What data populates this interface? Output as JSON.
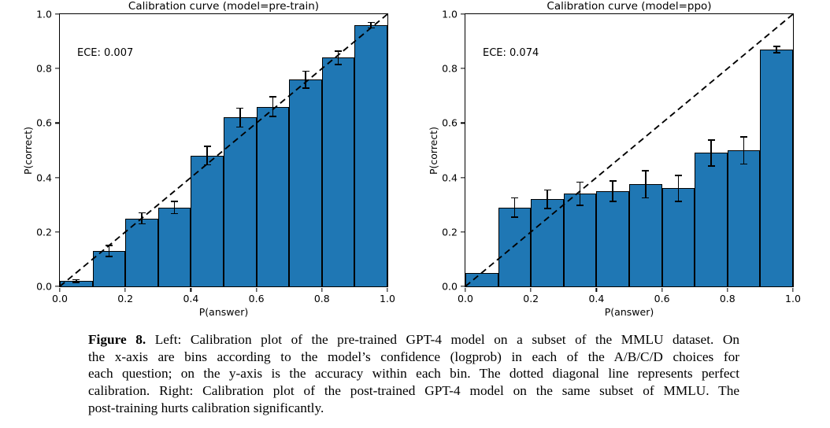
{
  "colors": {
    "background": "#ffffff",
    "bar_fill": "#1f77b4",
    "bar_edge": "#000000",
    "diagonal": "#000000",
    "text": "#000000"
  },
  "axis": {
    "tick_values": [
      0.0,
      0.2,
      0.4,
      0.6,
      0.8,
      1.0
    ],
    "x_ticks": [
      "0.0",
      "0.2",
      "0.4",
      "0.6",
      "0.8",
      "1.0"
    ],
    "y_ticks": [
      "0.0",
      "0.2",
      "0.4",
      "0.6",
      "0.8",
      "1.0"
    ]
  },
  "chart_data": [
    {
      "type": "bar",
      "title": "Calibration curve (model=pre-train)",
      "xlabel": "P(answer)",
      "ylabel": "P(correct)",
      "annotation": "ECE: 0.007",
      "xlim": [
        0.0,
        1.0
      ],
      "ylim": [
        0.0,
        1.0
      ],
      "grid": false,
      "bin_edges": [
        0.0,
        0.1,
        0.2,
        0.3,
        0.4,
        0.5,
        0.6,
        0.7,
        0.8,
        0.9,
        1.0
      ],
      "bin_centers": [
        0.05,
        0.15,
        0.25,
        0.35,
        0.45,
        0.55,
        0.65,
        0.75,
        0.85,
        0.95
      ],
      "values": [
        0.02,
        0.13,
        0.25,
        0.29,
        0.48,
        0.62,
        0.66,
        0.76,
        0.84,
        0.96
      ],
      "errors": [
        0.005,
        0.02,
        0.02,
        0.023,
        0.034,
        0.035,
        0.036,
        0.031,
        0.025,
        0.01
      ],
      "diagonal": {
        "from": [
          0,
          0
        ],
        "to": [
          1,
          1
        ],
        "style": "dashed"
      }
    },
    {
      "type": "bar",
      "title": "Calibration curve (model=ppo)",
      "xlabel": "P(answer)",
      "ylabel": "P(correct)",
      "annotation": "ECE: 0.074",
      "xlim": [
        0.0,
        1.0
      ],
      "ylim": [
        0.0,
        1.0
      ],
      "grid": false,
      "bin_edges": [
        0.0,
        0.1,
        0.2,
        0.3,
        0.4,
        0.5,
        0.6,
        0.7,
        0.8,
        0.9,
        1.0
      ],
      "bin_centers": [
        0.05,
        0.15,
        0.25,
        0.35,
        0.45,
        0.55,
        0.65,
        0.75,
        0.85,
        0.95
      ],
      "values": [
        0.05,
        0.29,
        0.32,
        0.34,
        0.35,
        0.375,
        0.36,
        0.49,
        0.5,
        0.87
      ],
      "errors": [
        0,
        0.035,
        0.034,
        0.043,
        0.037,
        0.05,
        0.047,
        0.047,
        0.05,
        0.012
      ],
      "diagonal": {
        "from": [
          0,
          0
        ],
        "to": [
          1,
          1
        ],
        "style": "dashed"
      }
    }
  ],
  "caption": {
    "label": "Figure 8.",
    "line1_rest": " Left: Calibration plot of the pre-trained GPT-4 model on a subset of the MMLU dataset. On",
    "line2": "the x-axis are bins according to the model’s confidence (logprob) in each of the A/B/C/D choices for",
    "line3": "each question; on the y-axis is the accuracy within each bin. The dotted diagonal line represents perfect",
    "line4": "calibration. Right: Calibration plot of the post-trained GPT-4 model on the same subset of MMLU. The",
    "line5": "post-training hurts calibration significantly.",
    "full_text": "Figure 8. Left: Calibration plot of the pre-trained GPT-4 model on a subset of the MMLU dataset. On the x-axis are bins according to the model’s confidence (logprob) in each of the A/B/C/D choices for each question; on the y-axis is the accuracy within each bin. The dotted diagonal line represents perfect calibration. Right: Calibration plot of the post-trained GPT-4 model on the same subset of MMLU. The post-training hurts calibration significantly."
  }
}
